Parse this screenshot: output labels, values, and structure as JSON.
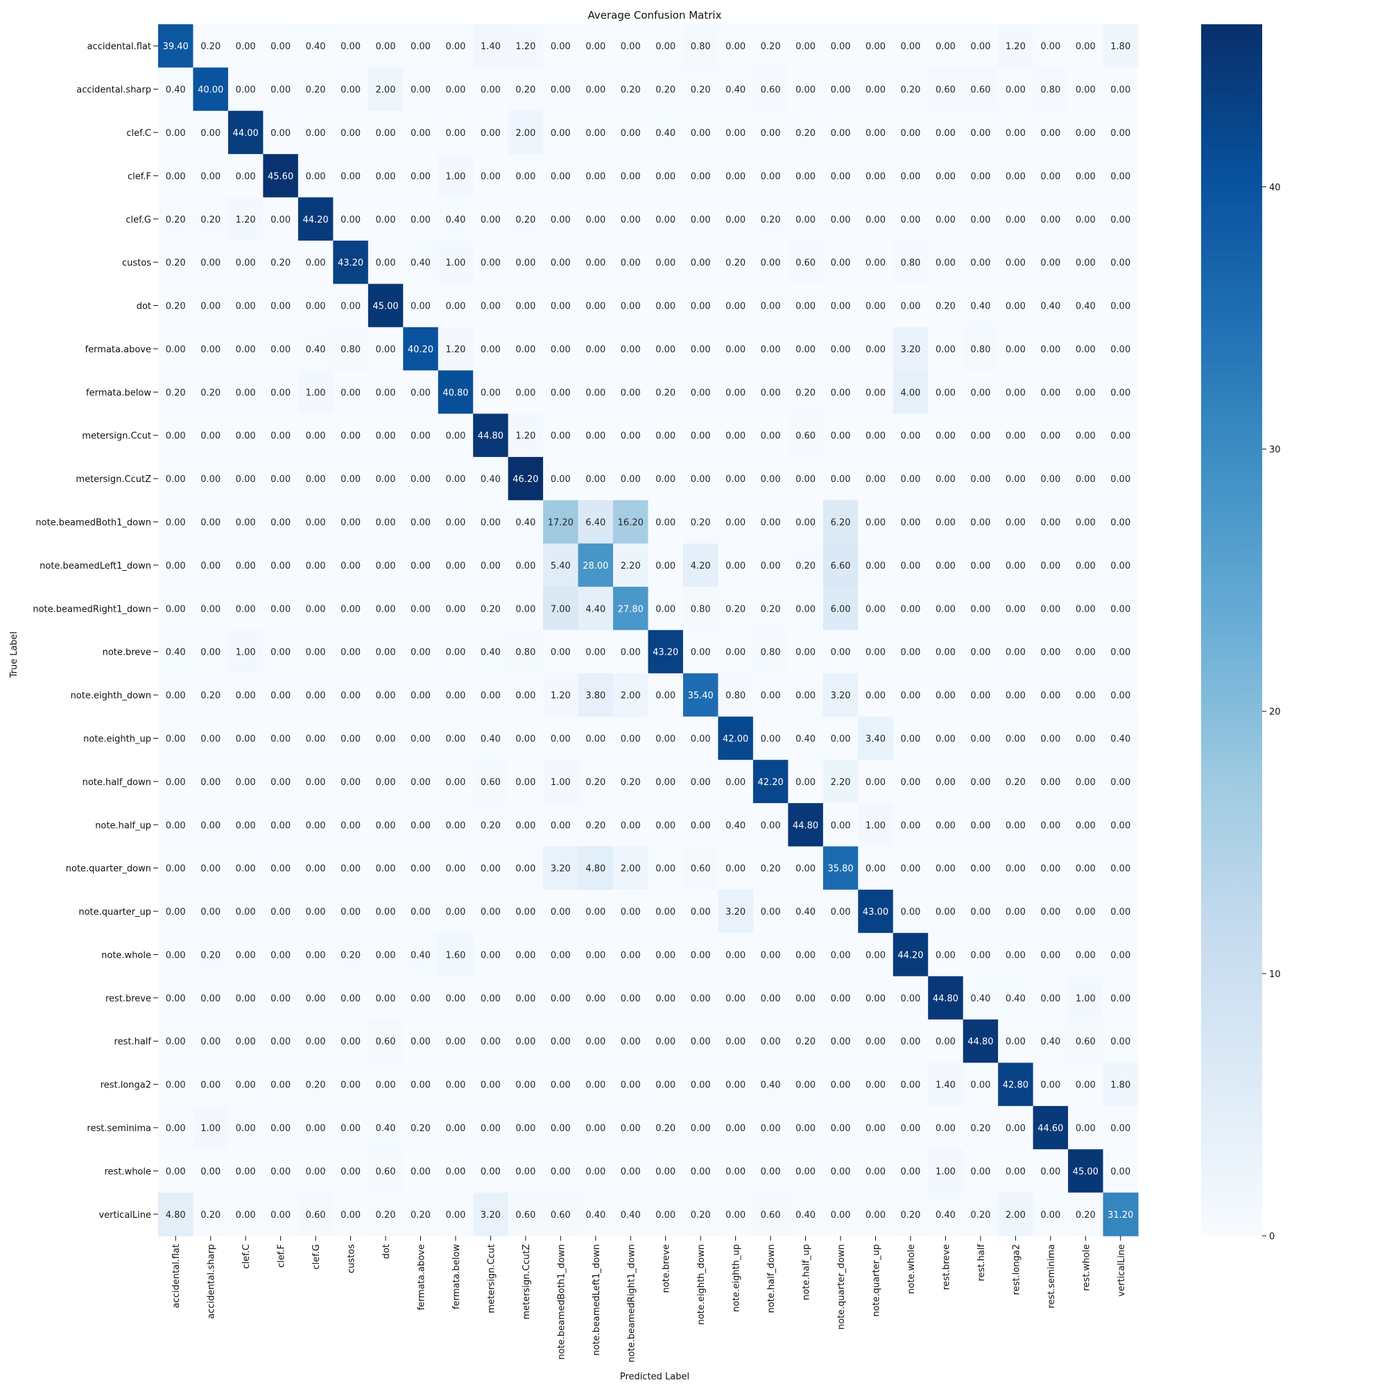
{
  "chart_data": {
    "type": "heatmap",
    "title": "Average Confusion Matrix",
    "xlabel": "Predicted Label",
    "ylabel": "True Label",
    "labels": [
      "accidental.flat",
      "accidental.sharp",
      "clef.C",
      "clef.F",
      "clef.G",
      "custos",
      "dot",
      "fermata.above",
      "fermata.below",
      "metersign.Ccut",
      "metersign.CcutZ",
      "note.beamedBoth1_down",
      "note.beamedLeft1_down",
      "note.beamedRight1_down",
      "note.breve",
      "note.eighth_down",
      "note.eighth_up",
      "note.half_down",
      "note.half_up",
      "note.quarter_down",
      "note.quarter_up",
      "note.whole",
      "rest.breve",
      "rest.half",
      "rest.longa2",
      "rest.seminima",
      "rest.whole",
      "verticalLine"
    ],
    "matrix": [
      [
        39.4,
        0.2,
        0,
        0,
        0.4,
        0,
        0,
        0,
        0,
        1.4,
        1.2,
        0,
        0,
        0,
        0,
        0.8,
        0,
        0.2,
        0,
        0,
        0,
        0,
        0,
        0,
        1.2,
        0,
        0,
        1.8
      ],
      [
        0.4,
        40.0,
        0,
        0,
        0.2,
        0,
        2.0,
        0,
        0,
        0,
        0.2,
        0,
        0,
        0.2,
        0.2,
        0.2,
        0.4,
        0.6,
        0,
        0,
        0,
        0.2,
        0.6,
        0.6,
        0,
        0.8,
        0,
        0
      ],
      [
        0,
        0,
        44.0,
        0,
        0,
        0,
        0,
        0,
        0,
        0,
        2.0,
        0,
        0,
        0,
        0.4,
        0,
        0,
        0,
        0.2,
        0,
        0,
        0,
        0,
        0,
        0,
        0,
        0,
        0
      ],
      [
        0,
        0,
        0,
        45.6,
        0,
        0,
        0,
        0,
        1.0,
        0,
        0,
        0,
        0,
        0,
        0,
        0,
        0,
        0,
        0,
        0,
        0,
        0,
        0,
        0,
        0,
        0,
        0,
        0
      ],
      [
        0.2,
        0.2,
        1.2,
        0,
        44.2,
        0,
        0,
        0,
        0.4,
        0,
        0.2,
        0,
        0,
        0,
        0,
        0,
        0,
        0.2,
        0,
        0,
        0,
        0,
        0,
        0,
        0,
        0,
        0,
        0
      ],
      [
        0.2,
        0,
        0,
        0.2,
        0,
        43.2,
        0,
        0.4,
        1.0,
        0,
        0,
        0,
        0,
        0,
        0,
        0,
        0.2,
        0,
        0.6,
        0,
        0,
        0.8,
        0,
        0,
        0,
        0,
        0,
        0
      ],
      [
        0.2,
        0,
        0,
        0,
        0,
        0,
        45.0,
        0,
        0,
        0,
        0,
        0,
        0,
        0,
        0,
        0,
        0,
        0,
        0,
        0,
        0,
        0,
        0.2,
        0.4,
        0,
        0.4,
        0.4,
        0
      ],
      [
        0,
        0,
        0,
        0,
        0.4,
        0.8,
        0,
        40.2,
        1.2,
        0,
        0,
        0,
        0,
        0,
        0,
        0,
        0,
        0,
        0,
        0,
        0,
        3.2,
        0,
        0.8,
        0,
        0,
        0,
        0
      ],
      [
        0.2,
        0.2,
        0,
        0,
        1.0,
        0,
        0,
        0,
        40.8,
        0,
        0,
        0,
        0,
        0,
        0.2,
        0,
        0,
        0,
        0.2,
        0,
        0,
        4.0,
        0,
        0,
        0,
        0,
        0,
        0
      ],
      [
        0,
        0,
        0,
        0,
        0,
        0,
        0,
        0,
        0,
        44.8,
        1.2,
        0,
        0,
        0,
        0,
        0,
        0,
        0,
        0.6,
        0,
        0,
        0,
        0,
        0,
        0,
        0,
        0,
        0
      ],
      [
        0,
        0,
        0,
        0,
        0,
        0,
        0,
        0,
        0,
        0.4,
        46.2,
        0,
        0,
        0,
        0,
        0,
        0,
        0,
        0,
        0,
        0,
        0,
        0,
        0,
        0,
        0,
        0,
        0
      ],
      [
        0,
        0,
        0,
        0,
        0,
        0,
        0,
        0,
        0,
        0,
        0.4,
        17.2,
        6.4,
        16.2,
        0,
        0.2,
        0,
        0,
        0,
        6.2,
        0,
        0,
        0,
        0,
        0,
        0,
        0,
        0
      ],
      [
        0,
        0,
        0,
        0,
        0,
        0,
        0,
        0,
        0,
        0,
        0,
        5.4,
        28.0,
        2.2,
        0,
        4.2,
        0,
        0,
        0.2,
        6.6,
        0,
        0,
        0,
        0,
        0,
        0,
        0,
        0
      ],
      [
        0,
        0,
        0,
        0,
        0,
        0,
        0,
        0,
        0,
        0.2,
        0,
        7.0,
        4.4,
        27.8,
        0,
        0.8,
        0.2,
        0.2,
        0,
        6.0,
        0,
        0,
        0,
        0,
        0,
        0,
        0,
        0
      ],
      [
        0.4,
        0,
        1.0,
        0,
        0,
        0,
        0,
        0,
        0,
        0.4,
        0.8,
        0,
        0,
        0,
        43.2,
        0,
        0,
        0.8,
        0,
        0,
        0,
        0,
        0,
        0,
        0,
        0,
        0,
        0
      ],
      [
        0,
        0.2,
        0,
        0,
        0,
        0,
        0,
        0,
        0,
        0,
        0,
        1.2,
        3.8,
        2.0,
        0,
        35.4,
        0.8,
        0,
        0,
        3.2,
        0,
        0,
        0,
        0,
        0,
        0,
        0,
        0
      ],
      [
        0,
        0,
        0,
        0,
        0,
        0,
        0,
        0,
        0,
        0.4,
        0,
        0,
        0,
        0,
        0,
        0,
        42.0,
        0,
        0.4,
        0,
        3.4,
        0,
        0,
        0,
        0,
        0,
        0,
        0.4
      ],
      [
        0,
        0,
        0,
        0,
        0,
        0,
        0,
        0,
        0,
        0.6,
        0,
        1.0,
        0.2,
        0.2,
        0,
        0,
        0,
        42.2,
        0,
        2.2,
        0,
        0,
        0,
        0,
        0.2,
        0,
        0,
        0
      ],
      [
        0,
        0,
        0,
        0,
        0,
        0,
        0,
        0,
        0,
        0.2,
        0,
        0,
        0.2,
        0,
        0,
        0,
        0.4,
        0,
        44.8,
        0,
        1.0,
        0,
        0,
        0,
        0,
        0,
        0,
        0
      ],
      [
        0,
        0,
        0,
        0,
        0,
        0,
        0,
        0,
        0,
        0,
        0,
        3.2,
        4.8,
        2.0,
        0,
        0.6,
        0,
        0.2,
        0,
        35.8,
        0,
        0,
        0,
        0,
        0,
        0,
        0,
        0
      ],
      [
        0,
        0,
        0,
        0,
        0,
        0,
        0,
        0,
        0,
        0,
        0,
        0,
        0,
        0,
        0,
        0,
        3.2,
        0,
        0.4,
        0,
        43.0,
        0,
        0,
        0,
        0,
        0,
        0,
        0
      ],
      [
        0,
        0.2,
        0,
        0,
        0,
        0.2,
        0,
        0.4,
        1.6,
        0,
        0,
        0,
        0,
        0,
        0,
        0,
        0,
        0,
        0,
        0,
        0,
        44.2,
        0,
        0,
        0,
        0,
        0,
        0
      ],
      [
        0,
        0,
        0,
        0,
        0,
        0,
        0,
        0,
        0,
        0,
        0,
        0,
        0,
        0,
        0,
        0,
        0,
        0,
        0,
        0,
        0,
        0,
        44.8,
        0.4,
        0.4,
        0,
        1.0,
        0
      ],
      [
        0,
        0,
        0,
        0,
        0,
        0,
        0.6,
        0,
        0,
        0,
        0,
        0,
        0,
        0,
        0,
        0,
        0,
        0,
        0.2,
        0,
        0,
        0,
        0,
        44.8,
        0,
        0.4,
        0.6,
        0
      ],
      [
        0,
        0,
        0,
        0,
        0.2,
        0,
        0,
        0,
        0,
        0,
        0,
        0,
        0,
        0,
        0,
        0,
        0,
        0.4,
        0,
        0,
        0,
        0,
        1.4,
        0,
        42.8,
        0,
        0,
        1.8
      ],
      [
        0,
        1.0,
        0,
        0,
        0,
        0,
        0.4,
        0.2,
        0,
        0,
        0,
        0,
        0,
        0,
        0.2,
        0,
        0,
        0,
        0,
        0,
        0,
        0,
        0,
        0.2,
        0,
        44.6,
        0,
        0
      ],
      [
        0,
        0,
        0,
        0,
        0,
        0,
        0.6,
        0,
        0,
        0,
        0,
        0,
        0,
        0,
        0,
        0,
        0,
        0,
        0,
        0,
        0,
        0,
        1.0,
        0,
        0,
        0,
        45.0,
        0
      ],
      [
        4.8,
        0.2,
        0,
        0,
        0.6,
        0,
        0.2,
        0.2,
        0,
        3.2,
        0.6,
        0.6,
        0.4,
        0.4,
        0,
        0.2,
        0,
        0.6,
        0.4,
        0,
        0,
        0.2,
        0.4,
        0.2,
        2.0,
        0,
        0.2,
        31.2
      ]
    ],
    "value_format": "2 decimals",
    "colormap": "Blues",
    "vmin": 0,
    "vmax": 46.2,
    "colorbar_ticks": [
      0,
      10,
      20,
      30,
      40
    ],
    "colors": {
      "low": "#f7fbff",
      "high": "#08306b"
    }
  }
}
